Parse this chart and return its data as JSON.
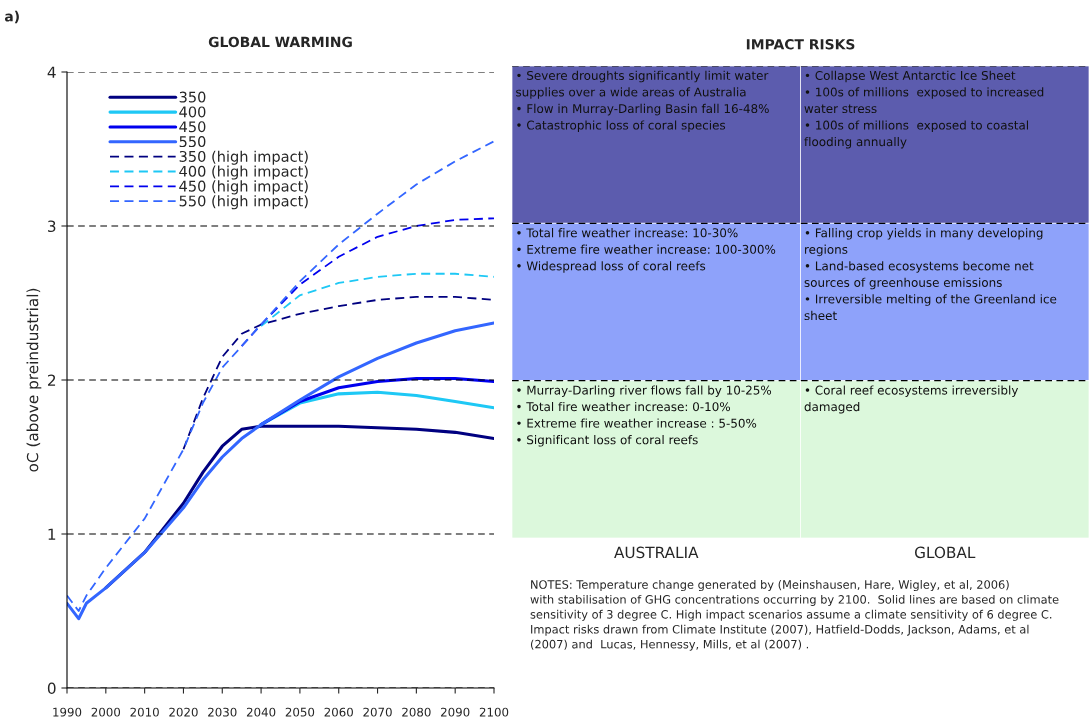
{
  "chart_data": [
    {
      "type": "line",
      "title": "GLOBAL WARMING",
      "ylabel": "oC (above preindustrial)",
      "x": [
        1990,
        1993,
        1995,
        2000,
        2010,
        2020,
        2025,
        2030,
        2035,
        2040,
        2050,
        2060,
        2070,
        2080,
        2090,
        2100
      ],
      "xlim": [
        1990,
        2100
      ],
      "xticks": [
        1990,
        2000,
        2010,
        2020,
        2030,
        2040,
        2050,
        2060,
        2070,
        2080,
        2090,
        2100
      ],
      "ylim": [
        0,
        4
      ],
      "yticks": [
        0,
        1,
        2,
        3,
        4
      ],
      "grid": "y",
      "legend": "top left",
      "series": [
        {
          "name": "350",
          "color": "#000080",
          "line_style": "solid",
          "values": [
            null,
            null,
            null,
            0.65,
            0.88,
            1.2,
            1.4,
            1.57,
            1.68,
            1.7,
            1.7,
            1.7,
            1.69,
            1.68,
            1.66,
            1.62
          ]
        },
        {
          "name": "400",
          "color": "#1ec8f5",
          "line_style": "solid",
          "values": [
            null,
            null,
            null,
            null,
            null,
            null,
            null,
            null,
            null,
            1.71,
            1.85,
            1.91,
            1.92,
            1.9,
            1.86,
            1.82
          ]
        },
        {
          "name": "450",
          "color": "#0000ee",
          "line_style": "solid",
          "values": [
            null,
            null,
            null,
            null,
            null,
            null,
            null,
            null,
            null,
            1.71,
            1.86,
            1.95,
            1.99,
            2.01,
            2.01,
            1.99
          ]
        },
        {
          "name": "550",
          "color": "#3366ff",
          "line_style": "solid",
          "values": [
            0.55,
            0.45,
            0.55,
            0.65,
            0.88,
            1.17,
            1.35,
            1.5,
            1.62,
            1.71,
            1.87,
            2.02,
            2.14,
            2.24,
            2.32,
            2.37
          ]
        },
        {
          "name": "350 (high impact)",
          "color": "#000080",
          "line_style": "dashed",
          "values": [
            null,
            null,
            null,
            null,
            null,
            1.55,
            1.88,
            2.15,
            2.3,
            2.36,
            2.43,
            2.48,
            2.52,
            2.54,
            2.54,
            2.52
          ]
        },
        {
          "name": "400 (high impact)",
          "color": "#1ec8f5",
          "line_style": "dashed",
          "values": [
            null,
            null,
            null,
            null,
            null,
            null,
            null,
            null,
            null,
            2.35,
            2.55,
            2.63,
            2.67,
            2.69,
            2.69,
            2.67
          ]
        },
        {
          "name": "450 (high impact)",
          "color": "#0000ee",
          "line_style": "dashed",
          "values": [
            null,
            null,
            null,
            null,
            null,
            null,
            null,
            null,
            2.22,
            2.36,
            2.62,
            2.8,
            2.93,
            3.0,
            3.04,
            3.05
          ]
        },
        {
          "name": "550 (high impact)",
          "color": "#3366ff",
          "line_style": "dashed",
          "values": [
            0.6,
            0.5,
            0.6,
            0.78,
            1.1,
            1.55,
            1.85,
            2.08,
            2.22,
            2.36,
            2.64,
            2.88,
            3.08,
            3.27,
            3.42,
            3.55
          ]
        }
      ],
      "annotations": [
        "a)"
      ]
    },
    {
      "type": "other",
      "title": "IMPACT RISKS",
      "categories": [
        "AUSTRALIA",
        "GLOBAL"
      ],
      "colors": [
        "#5c5cae",
        "#8ea2fa",
        "#dcf8dc"
      ],
      "annotations": [
        "• Severe droughts significantly limit water\nsupplies over a wide areas of Australia\n• Flow in Murray-Darling Basin fall 16-48%\n• Catastrophic loss of coral species",
        "• Collapse West Antarctic Ice Sheet\n• 100s of millions  exposed to increased\nwater stress\n• 100s of millions  exposed to coastal\nflooding annually",
        "• Total fire weather increase: 10-30%\n• Extreme fire weather increase: 100-300%\n• Widespread loss of coral reefs",
        "• Falling crop yields in many developing\nregions\n• Land-based ecosystems become net\nsources of greenhouse emissions\n• Irreversible melting of the Greenland ice\nsheet",
        "• Murray-Darling river flows fall by 10-25%\n• Total fire weather increase: 0-10%\n• Extreme fire weather increase : 5-50%\n• Significant loss of coral reefs",
        "• Coral reef ecosystems irreversibly\ndamaged",
        "NOTES: Temperature change generated by (Meinshausen, Hare, Wigley, et al, 2006)\nwith stabilisation of GHG concentrations occurring by 2100.  Solid lines are based on climate\nsensitivity of 3 degree C. High impact scenarios assume a climate sensitivity of 6 degree C.\nImpact risks drawn from Climate Institute (2007), Hatfield-Dodds, Jackson, Adams, et al\n(2007) and  Lucas, Hennessy, Mills, et al (2007) ."
      ]
    }
  ]
}
